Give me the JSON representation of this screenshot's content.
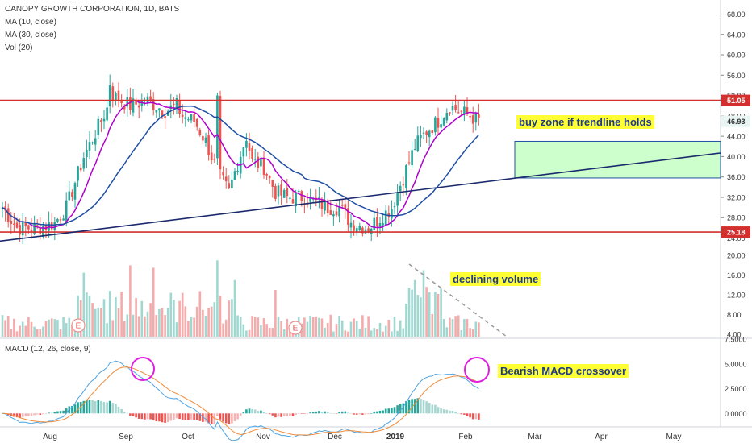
{
  "chart_data": {
    "type": "candlestick",
    "title": "CANOPY GROWTH CORPORATION, 1D, BATS",
    "indicators": [
      "MA (10, close)",
      "MA (30, close)",
      "Vol (20)"
    ],
    "macd_label": "MACD (12, 26, close, 9)",
    "x_labels": [
      "Aug",
      "Sep",
      "Oct",
      "Nov",
      "Dec",
      "2019",
      "Feb",
      "Mar",
      "Apr",
      "May"
    ],
    "price_ticks": [
      "68.00",
      "64.00",
      "60.00",
      "56.00",
      "52.00",
      "48.00",
      "44.00",
      "40.00",
      "36.00",
      "32.00",
      "28.00",
      "24.00"
    ],
    "volume_ticks": [
      "20.00",
      "16.00",
      "12.00",
      "8.00",
      "4.00"
    ],
    "macd_ticks": [
      "7.5000",
      "5.0000",
      "2.5000",
      "0.0000"
    ],
    "price_ylim": [
      22.5,
      69.5
    ],
    "volume_ylim": [
      3.5,
      22
    ],
    "macd_ylim": [
      -1.2,
      7.6
    ],
    "resistance": {
      "value": 51.05,
      "label": "51.05"
    },
    "support": {
      "value": 25.18,
      "label": "25.18"
    },
    "last_price": {
      "value": 46.93,
      "label": "46.93"
    },
    "earnings_marker": "E",
    "annotations": {
      "buy_zone": "buy zone if trendline holds",
      "volume": "declining volume",
      "macd": "Bearish MACD crossover"
    },
    "colors": {
      "up": "#26a69a",
      "down": "#ef5350",
      "ma10": "#b100cd",
      "ma30": "#1f4fa3",
      "line": "#d32f2f",
      "trend": "#1a2a6c",
      "zone": "#ccffcc"
    }
  }
}
